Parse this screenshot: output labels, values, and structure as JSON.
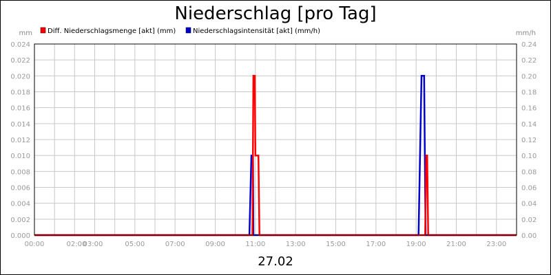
{
  "chart_data": {
    "type": "line",
    "title": "Niederschlag [pro Tag]",
    "date_label": "27.02",
    "left_unit": "mm",
    "right_unit": "mm/h",
    "x_ticks": [
      "00:00",
      "02:00",
      "03:00",
      "05:00",
      "07:00",
      "09:00",
      "11:00",
      "13:00",
      "15:00",
      "17:00",
      "19:00",
      "21:00",
      "23:00"
    ],
    "x_tick_hours": [
      0,
      2,
      3,
      5,
      7,
      9,
      11,
      13,
      15,
      17,
      19,
      21,
      23
    ],
    "xlim": [
      0,
      24
    ],
    "ylim_left": [
      0,
      0.024
    ],
    "ylim_right": [
      0,
      0.24
    ],
    "y_ticks_left": [
      "0.000",
      "0.002",
      "0.004",
      "0.006",
      "0.008",
      "0.010",
      "0.012",
      "0.014",
      "0.016",
      "0.018",
      "0.020",
      "0.022",
      "0.024"
    ],
    "y_ticks_right": [
      "0.00",
      "0.02",
      "0.04",
      "0.06",
      "0.08",
      "0.10",
      "0.12",
      "0.14",
      "0.16",
      "0.18",
      "0.20",
      "0.22",
      "0.24"
    ],
    "grid": true,
    "legend_position": "top-left",
    "series": [
      {
        "name": "Niederschlagsintensität [akt] (mm/h)",
        "color": "#0000cc",
        "axis": "right",
        "x": [
          0,
          10.7,
          10.8,
          10.88,
          10.9,
          19.12,
          19.27,
          19.4,
          19.47,
          24
        ],
        "y": [
          0,
          0,
          0.1,
          0.1,
          0,
          0,
          0.2,
          0.2,
          0,
          0
        ]
      },
      {
        "name": "Diff. Niederschlagsmenge [akt] (mm)",
        "color": "#ff0000",
        "axis": "left",
        "x": [
          0,
          10.85,
          10.9,
          10.97,
          11.0,
          11.05,
          11.15,
          11.2,
          19.45,
          19.5,
          19.55,
          19.6,
          24
        ],
        "y": [
          0,
          0,
          0.02,
          0.02,
          0.01,
          0.01,
          0.01,
          0,
          0,
          0.01,
          0.01,
          0,
          0
        ]
      }
    ]
  }
}
